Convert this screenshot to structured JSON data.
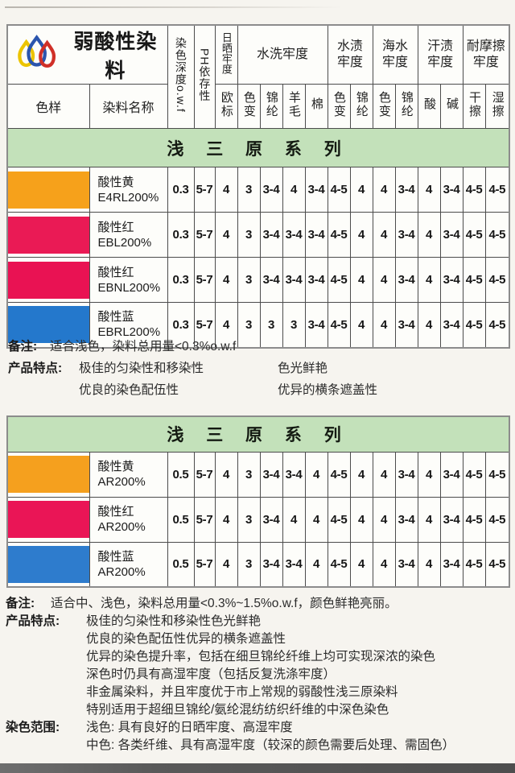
{
  "brand": {
    "title": "弱酸性染料"
  },
  "logo": {
    "drop_colors": {
      "yellow": "#ecc400",
      "blue": "#2b55ad",
      "red": "#d03028"
    }
  },
  "table_header": {
    "col_sample": "色样",
    "col_name": "染料名称",
    "col_depth": "染色深度o.w.f",
    "col_ph": "PH依存性",
    "col_light": "日晒牢度",
    "col_light_sub": "欧标",
    "groups": [
      {
        "label": "水洗牢度",
        "subs": [
          "色变",
          "锦纶",
          "羊毛",
          "棉"
        ]
      },
      {
        "label": "水渍牢度",
        "subs": [
          "色变",
          "锦纶"
        ]
      },
      {
        "label": "海水牢度",
        "subs": [
          "色变",
          "锦纶"
        ]
      },
      {
        "label": "汗渍牢度",
        "subs": [
          "酸",
          "碱"
        ]
      },
      {
        "label": "耐摩擦牢度",
        "subs": [
          "干擦",
          "湿擦"
        ]
      }
    ]
  },
  "colors": {
    "banner_green": "#c3e1ba"
  },
  "series1": {
    "banner": "浅 三 原 系 列",
    "rows": [
      {
        "swatch": "#f6a11b",
        "name": "酸性黄",
        "code": "E4RL200%",
        "values": [
          "0.3",
          "5-7",
          "4",
          "3",
          "3-4",
          "4",
          "3-4",
          "4-5",
          "4",
          "4",
          "3-4",
          "4",
          "3-4",
          "4-5",
          "4-5"
        ]
      },
      {
        "swatch": "#ea1a55",
        "name": "酸性红",
        "code": "EBL200%",
        "values": [
          "0.3",
          "5-7",
          "4",
          "3",
          "3-4",
          "3-4",
          "3-4",
          "4-5",
          "4",
          "4",
          "3-4",
          "4",
          "3-4",
          "4-5",
          "4-5"
        ]
      },
      {
        "swatch": "#e91253",
        "name": "酸性红",
        "code": "EBNL200%",
        "values": [
          "0.3",
          "5-7",
          "4",
          "3",
          "3-4",
          "3-4",
          "3-4",
          "4-5",
          "4",
          "4",
          "3-4",
          "4",
          "3-4",
          "4-5",
          "4-5"
        ]
      },
      {
        "swatch": "#2478cc",
        "name": "酸性蓝",
        "code": "EBRL200%",
        "values": [
          "0.3",
          "5-7",
          "4",
          "3",
          "3",
          "3",
          "3-4",
          "4-5",
          "4",
          "4",
          "3-4",
          "4",
          "3-4",
          "4-5",
          "4-5"
        ]
      }
    ],
    "notes": {
      "remark_label": "备注:",
      "remark": "适合浅色，染料总用量<0.3%o.w.f",
      "features_label": "产品特点:",
      "features_left": [
        "极佳的匀染性和移染性",
        "优良的染色配伍性"
      ],
      "features_right": [
        "色光鲜艳",
        "优异的横条遮盖性"
      ]
    }
  },
  "series2": {
    "banner": "浅 三 原 系 列",
    "rows": [
      {
        "swatch": "#f5a01e",
        "name": "酸性黄",
        "code": "AR200%",
        "values": [
          "0.5",
          "5-7",
          "4",
          "3",
          "3-4",
          "3-4",
          "4",
          "4-5",
          "4",
          "4",
          "3-4",
          "4",
          "3-4",
          "4-5",
          "4-5"
        ]
      },
      {
        "swatch": "#ea1556",
        "name": "酸性红",
        "code": "AR200%",
        "values": [
          "0.5",
          "5-7",
          "4",
          "3",
          "3-4",
          "4",
          "4",
          "4-5",
          "4",
          "4",
          "3-4",
          "4",
          "3-4",
          "4-5",
          "4-5"
        ]
      },
      {
        "swatch": "#2e7ccd",
        "name": "酸性蓝",
        "code": "AR200%",
        "values": [
          "0.5",
          "5-7",
          "4",
          "3",
          "3-4",
          "3-4",
          "4",
          "4-5",
          "4",
          "4",
          "3-4",
          "4",
          "3-4",
          "4-5",
          "4-5"
        ]
      }
    ],
    "notes": {
      "remark_label": "备注:",
      "remark": "适合中、浅色，染料总用量<0.3%~1.5%o.w.f，颜色鲜艳亮丽。",
      "features_label": "产品特点:",
      "features": [
        "极佳的匀染性和移染性色光鲜艳",
        "优良的染色配伍性优异的横条遮盖性",
        "优异的染色提升率，包括在细旦锦纶纤维上均可实现深浓的染色",
        "深色时仍具有高湿牢度（包括反复洗涤牢度）",
        "非金属染料，并且牢度优于市上常规的弱酸性浅三原染料",
        "特别适用于超细旦锦纶/氨纶混纺纺织纤维的中深色染色"
      ],
      "range_label": "染色范围:",
      "range": [
        "浅色: 具有良好的日晒牢度、高湿牢度",
        "中色: 各类纤维、具有高湿牢度（较深的颜色需要后处理、需固色）"
      ]
    }
  }
}
